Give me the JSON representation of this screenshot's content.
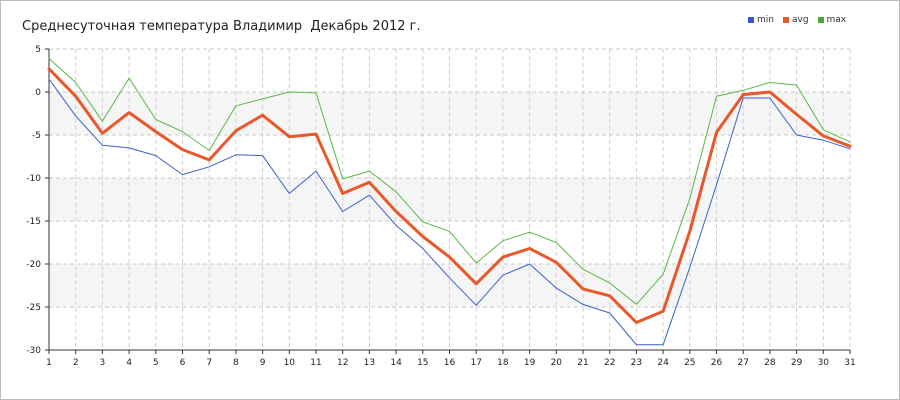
{
  "chart_data": {
    "type": "line",
    "title": "Среднесуточная температура Владимир  Декабрь 2012 г.",
    "xlabel": "",
    "ylabel": "",
    "x": [
      1,
      2,
      3,
      4,
      5,
      6,
      7,
      8,
      9,
      10,
      11,
      12,
      13,
      14,
      15,
      16,
      17,
      18,
      19,
      20,
      21,
      22,
      23,
      24,
      25,
      26,
      27,
      28,
      29,
      30,
      31
    ],
    "xlim": [
      1,
      31
    ],
    "ylim": [
      -30,
      5
    ],
    "yticks": [
      5,
      0,
      -5,
      -10,
      -15,
      -20,
      -25,
      -30
    ],
    "grid": true,
    "legend_position": "top-right",
    "series": [
      {
        "name": "min",
        "color": "#3a5fcd",
        "width": 1,
        "values": [
          1.5,
          -2.8,
          -6.2,
          -6.5,
          -7.4,
          -9.6,
          -8.7,
          -7.3,
          -7.4,
          -11.8,
          -9.2,
          -13.9,
          -12.0,
          -15.5,
          -18.2,
          -21.6,
          -24.8,
          -21.3,
          -20.0,
          -22.8,
          -24.7,
          -25.7,
          -29.4,
          -29.4,
          -20.4,
          -10.8,
          -0.7,
          -0.7,
          -5.0,
          -5.6,
          -6.6
        ]
      },
      {
        "name": "avg",
        "color": "#e8582a",
        "width": 3,
        "values": [
          2.7,
          -0.5,
          -4.8,
          -2.4,
          -4.6,
          -6.7,
          -7.9,
          -4.5,
          -2.7,
          -5.2,
          -4.9,
          -11.8,
          -10.5,
          -13.9,
          -16.8,
          -19.2,
          -22.3,
          -19.2,
          -18.2,
          -19.8,
          -22.9,
          -23.7,
          -26.8,
          -25.5,
          -16.2,
          -4.7,
          -0.3,
          0.0,
          -2.6,
          -5.1,
          -6.3
        ]
      },
      {
        "name": "max",
        "color": "#5cb845",
        "width": 1,
        "values": [
          3.9,
          1.1,
          -3.4,
          1.6,
          -3.2,
          -4.6,
          -6.8,
          -1.6,
          -0.8,
          0.0,
          -0.1,
          -10.1,
          -9.2,
          -11.6,
          -15.1,
          -16.2,
          -19.9,
          -17.3,
          -16.3,
          -17.5,
          -20.6,
          -22.2,
          -24.7,
          -21.2,
          -12.4,
          -0.5,
          0.2,
          1.1,
          0.8,
          -4.4,
          -5.8
        ]
      }
    ]
  }
}
